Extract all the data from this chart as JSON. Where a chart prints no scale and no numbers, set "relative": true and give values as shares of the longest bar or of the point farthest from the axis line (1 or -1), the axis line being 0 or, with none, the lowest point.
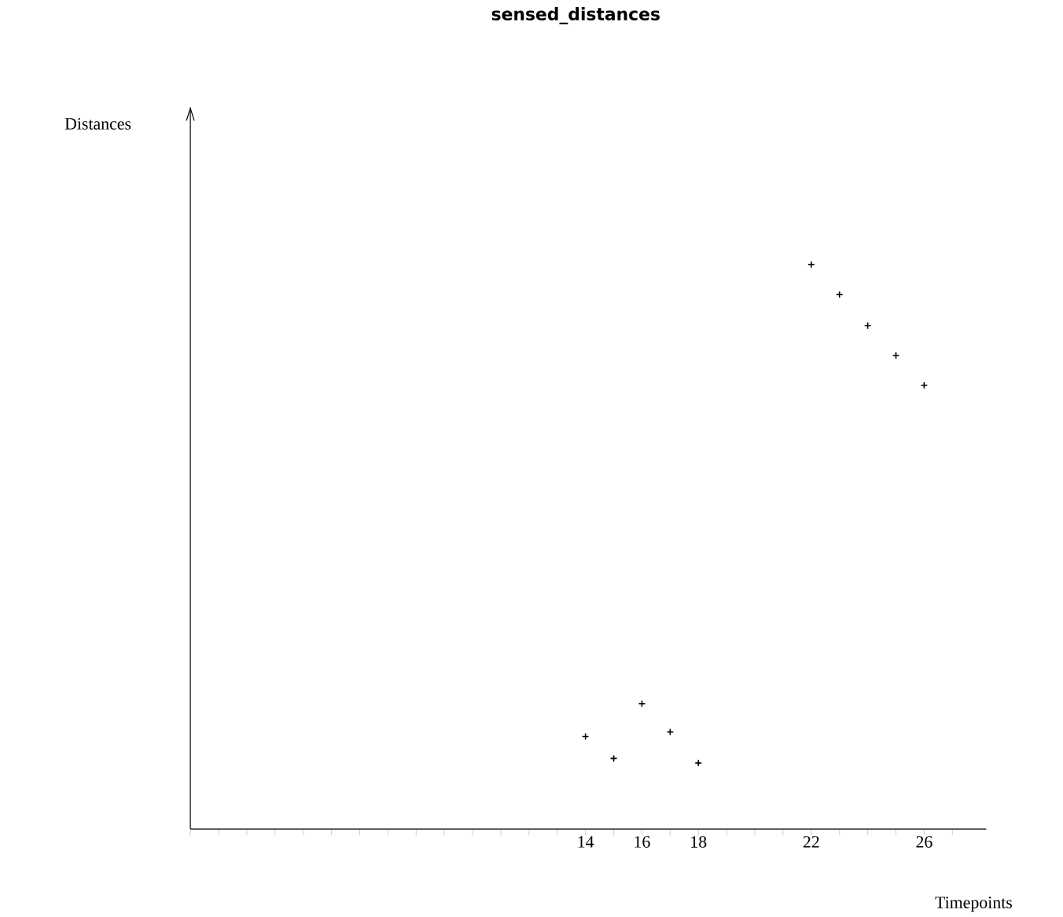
{
  "chart_data": {
    "type": "scatter",
    "title": "sensed_distances",
    "xlabel": "Timepoints",
    "annotations": [
      "Distances"
    ],
    "relative": true,
    "marker": "cross",
    "color": "#000000",
    "x": [
      14,
      15,
      16,
      17,
      18,
      22,
      23,
      24,
      25,
      26
    ],
    "values": [
      0.164,
      0.125,
      0.222,
      0.172,
      0.117,
      1,
      0.947,
      0.892,
      0.839,
      0.786
    ],
    "xlim": [
      0,
      28.2
    ],
    "xticks": [
      {
        "value": 0,
        "label": null
      },
      {
        "value": 1,
        "label": null
      },
      {
        "value": 2,
        "label": null
      },
      {
        "value": 3,
        "label": null
      },
      {
        "value": 4,
        "label": null
      },
      {
        "value": 5,
        "label": null
      },
      {
        "value": 6,
        "label": null
      },
      {
        "value": 7,
        "label": null
      },
      {
        "value": 8,
        "label": null
      },
      {
        "value": 9,
        "label": null
      },
      {
        "value": 10,
        "label": null
      },
      {
        "value": 11,
        "label": null
      },
      {
        "value": 12,
        "label": null
      },
      {
        "value": 13,
        "label": null
      },
      14,
      {
        "value": 15,
        "label": null
      },
      16,
      {
        "value": 17,
        "label": null
      },
      18,
      {
        "value": 19,
        "label": null
      },
      {
        "value": 20,
        "label": null
      },
      {
        "value": 21,
        "label": null
      },
      22,
      {
        "value": 23,
        "label": null
      },
      {
        "value": 24,
        "label": null
      },
      {
        "value": 25,
        "label": null
      },
      26,
      {
        "value": 27,
        "label": null
      }
    ],
    "grid": false
  }
}
